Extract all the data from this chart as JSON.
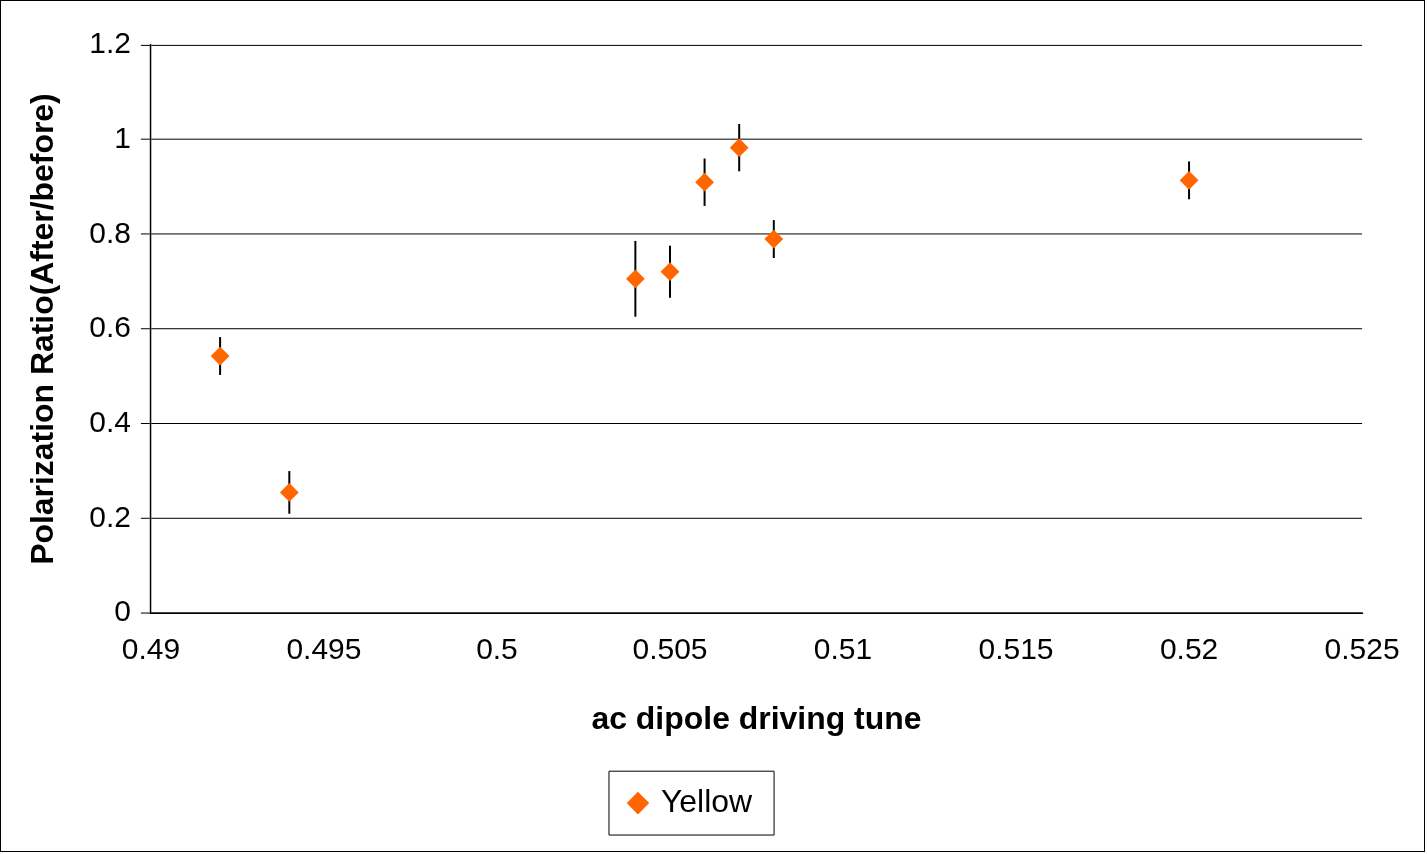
{
  "chart_data": {
    "type": "scatter",
    "xlabel": "ac dipole driving tune",
    "ylabel": "Polarization Ratio(After/before)",
    "series": [
      {
        "name": "Yellow",
        "color": "#ff6600",
        "x": [
          0.492,
          0.494,
          0.504,
          0.505,
          0.506,
          0.507,
          0.508,
          0.52
        ],
        "values": [
          0.543,
          0.255,
          0.706,
          0.721,
          0.91,
          0.983,
          0.79,
          0.914
        ],
        "errors": [
          0.04,
          0.045,
          0.08,
          0.055,
          0.05,
          0.05,
          0.04,
          0.04
        ]
      }
    ],
    "xlim": [
      0.49,
      0.525
    ],
    "xticks": [
      0.49,
      0.495,
      0.5,
      0.505,
      0.51,
      0.515,
      0.52,
      0.525
    ],
    "ylim": [
      0,
      1.2
    ],
    "yticks": [
      0,
      0.2,
      0.4,
      0.6,
      0.8,
      1,
      1.2
    ],
    "grid": "y",
    "legend": "bottom",
    "marker": "diamond"
  }
}
